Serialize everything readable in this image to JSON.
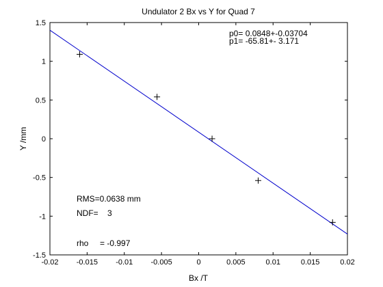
{
  "chart_data": {
    "type": "scatter",
    "title": "Undulator 2 Bx vs Y for Quad 7",
    "xlabel": "Bx /T",
    "ylabel": "Y /mm",
    "xlim": [
      -0.02,
      0.02
    ],
    "ylim": [
      -1.5,
      1.5
    ],
    "xticks": [
      -0.02,
      -0.015,
      -0.01,
      -0.005,
      0,
      0.005,
      0.01,
      0.015,
      0.02
    ],
    "xtick_labels": [
      "-0.02",
      "-0.015",
      "-0.01",
      "-0.005",
      "0",
      "0.005",
      "0.01",
      "0.015",
      "0.02"
    ],
    "yticks": [
      -1.5,
      -1,
      -0.5,
      0,
      0.5,
      1,
      1.5
    ],
    "ytick_labels": [
      "-1.5",
      "-1",
      "-0.5",
      "0",
      "0.5",
      "1",
      "1.5"
    ],
    "grid": false,
    "points": [
      {
        "x": -0.016,
        "y": 1.09
      },
      {
        "x": -0.0056,
        "y": 0.54
      },
      {
        "x": 0.0018,
        "y": 0.0
      },
      {
        "x": 0.008,
        "y": -0.54
      },
      {
        "x": 0.018,
        "y": -1.08
      }
    ],
    "fit_line": {
      "intercept": 0.0848,
      "slope": -65.81
    },
    "annotations": {
      "p0": "p0= 0.0848+-0.03704",
      "p1": "p1= -65.81+- 3.171",
      "rms": "RMS=0.0638 mm",
      "ndf": "NDF=    3",
      "rho": "rho     = -0.997"
    },
    "colors": {
      "fit_line": "#0000cc",
      "points": "#000000",
      "axes": "#000000"
    }
  }
}
